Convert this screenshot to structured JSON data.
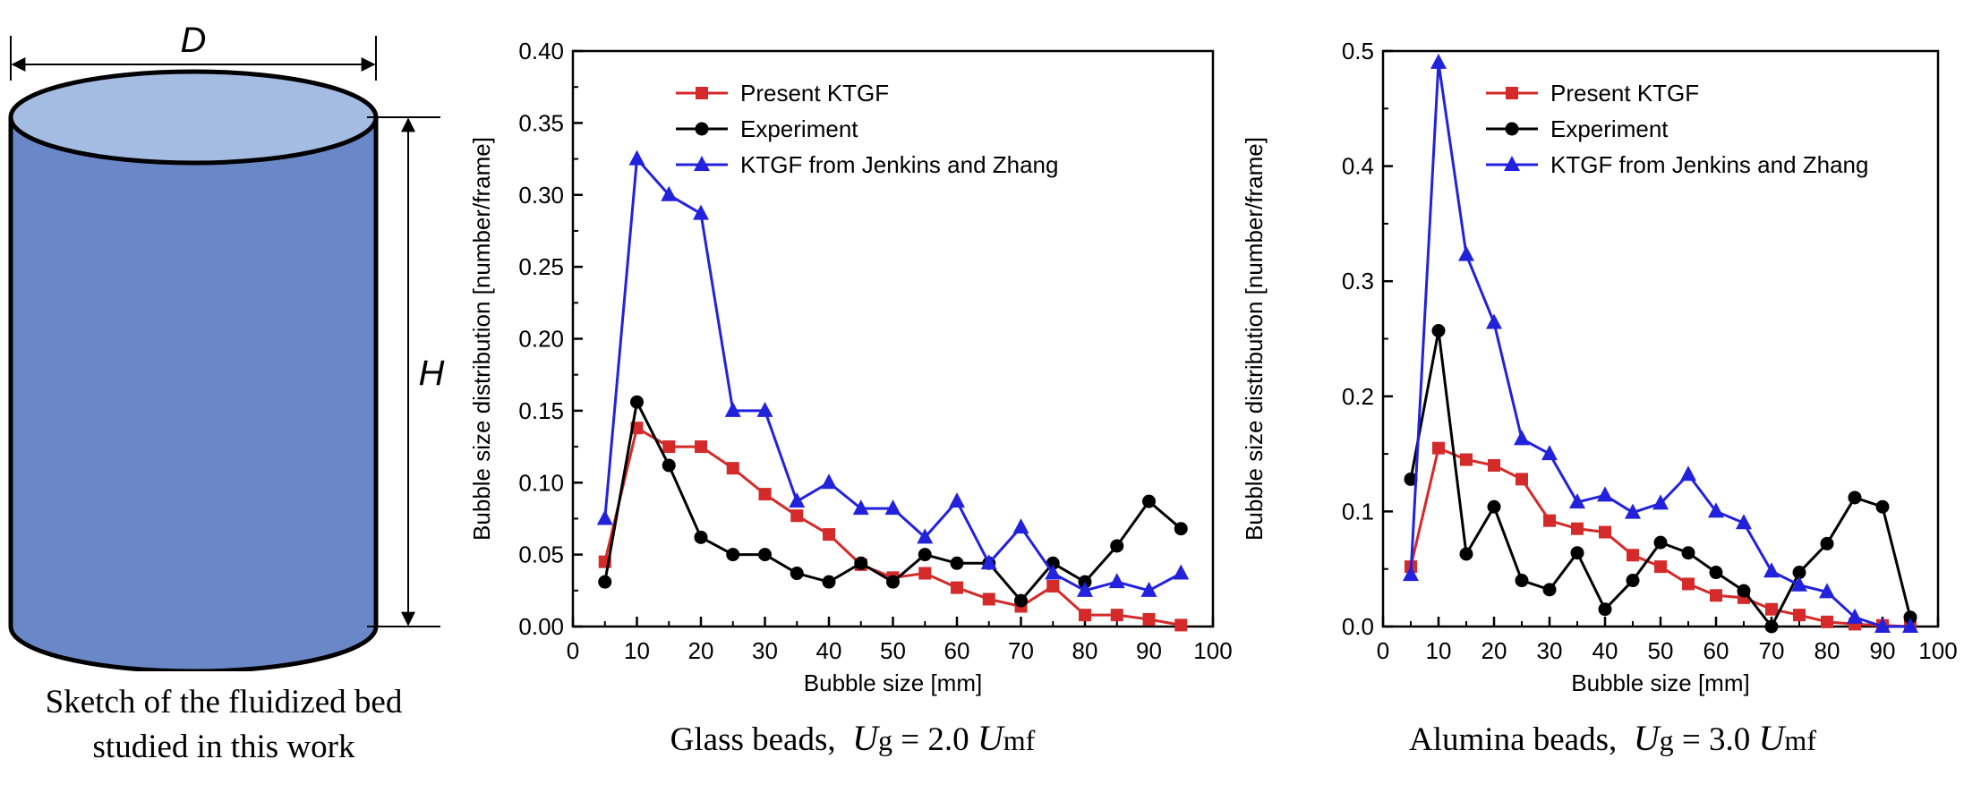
{
  "sketch": {
    "d_label": "D",
    "h_label": "H",
    "caption_line1": "Sketch of the fluidized bed",
    "caption_line2": "studied in this work",
    "colors": {
      "body": "#6a88c8",
      "top": "#a4bbe2",
      "outline": "#000000"
    }
  },
  "panels": [
    {
      "caption_text": "Glass beads,",
      "caption_ug": "U",
      "caption_g": "g",
      "caption_eq": " = 2.0 ",
      "caption_u": "U",
      "caption_mf": "mf"
    },
    {
      "caption_text": "Alumina beads,",
      "caption_ug": "U",
      "caption_g": "g",
      "caption_eq": " = 3.0 ",
      "caption_u": "U",
      "caption_mf": "mf"
    }
  ],
  "chart_data": [
    {
      "type": "line",
      "xlabel": "Bubble size [mm]",
      "ylabel": "Bubble size distribution [number/frame]",
      "xlim": [
        0,
        100
      ],
      "ylim": [
        0,
        0.4
      ],
      "xticks": [
        "0",
        "10",
        "20",
        "30",
        "40",
        "50",
        "60",
        "70",
        "80",
        "90",
        "100"
      ],
      "yticks": [
        "0.00",
        "0.05",
        "0.10",
        "0.15",
        "0.20",
        "0.25",
        "0.30",
        "0.35",
        "0.40"
      ],
      "legend_position": "top-right",
      "x": [
        5,
        10,
        15,
        20,
        25,
        30,
        35,
        40,
        45,
        50,
        55,
        60,
        65,
        70,
        75,
        80,
        85,
        90,
        95
      ],
      "series": [
        {
          "name": "Present KTGF",
          "color": "#d42a2a",
          "marker": "square",
          "values": [
            0.045,
            0.138,
            0.125,
            0.125,
            0.11,
            0.092,
            0.077,
            0.064,
            0.043,
            0.034,
            0.037,
            0.027,
            0.019,
            0.014,
            0.028,
            0.008,
            0.008,
            0.005,
            0.001
          ]
        },
        {
          "name": "Experiment",
          "color": "#000000",
          "marker": "circle",
          "values": [
            0.031,
            0.156,
            0.112,
            0.062,
            0.05,
            0.05,
            0.037,
            0.031,
            0.044,
            0.031,
            0.05,
            0.044,
            0.044,
            0.018,
            0.044,
            0.031,
            0.056,
            0.087,
            0.068
          ]
        },
        {
          "name": "KTGF from Jenkins and Zhang",
          "color": "#2222dd",
          "marker": "triangle",
          "values": [
            0.075,
            0.325,
            0.3,
            0.287,
            0.15,
            0.15,
            0.087,
            0.1,
            0.082,
            0.082,
            0.062,
            0.087,
            0.044,
            0.069,
            0.037,
            0.025,
            0.031,
            0.025,
            0.037
          ]
        }
      ]
    },
    {
      "type": "line",
      "xlabel": "Bubble size [mm]",
      "ylabel": "Bubble size distribution [number/frame]",
      "xlim": [
        0,
        100
      ],
      "ylim": [
        0,
        0.5
      ],
      "xticks": [
        "0",
        "10",
        "20",
        "30",
        "40",
        "50",
        "60",
        "70",
        "80",
        "90",
        "100"
      ],
      "yticks": [
        "0.0",
        "0.1",
        "0.2",
        "0.3",
        "0.4",
        "0.5"
      ],
      "legend_position": "top-right",
      "x": [
        5,
        10,
        15,
        20,
        25,
        30,
        35,
        40,
        45,
        50,
        55,
        60,
        65,
        70,
        75,
        80,
        85,
        90,
        95
      ],
      "series": [
        {
          "name": "Present KTGF",
          "color": "#d42a2a",
          "marker": "square",
          "values": [
            0.052,
            0.155,
            0.145,
            0.14,
            0.128,
            0.092,
            0.085,
            0.082,
            0.062,
            0.052,
            0.037,
            0.027,
            0.025,
            0.015,
            0.01,
            0.004,
            0.002,
            0.001,
            0.0
          ]
        },
        {
          "name": "Experiment",
          "color": "#000000",
          "marker": "circle",
          "values": [
            0.128,
            0.257,
            0.063,
            0.104,
            0.04,
            0.032,
            0.064,
            0.015,
            0.04,
            0.073,
            0.064,
            0.047,
            0.031,
            0.0,
            0.047,
            0.072,
            0.112,
            0.104,
            0.008
          ]
        },
        {
          "name": "KTGF from Jenkins and Zhang",
          "color": "#2222dd",
          "marker": "triangle",
          "values": [
            0.045,
            0.49,
            0.323,
            0.264,
            0.163,
            0.15,
            0.108,
            0.114,
            0.099,
            0.107,
            0.132,
            0.1,
            0.09,
            0.048,
            0.036,
            0.03,
            0.008,
            0.0,
            0.0
          ]
        }
      ]
    }
  ]
}
